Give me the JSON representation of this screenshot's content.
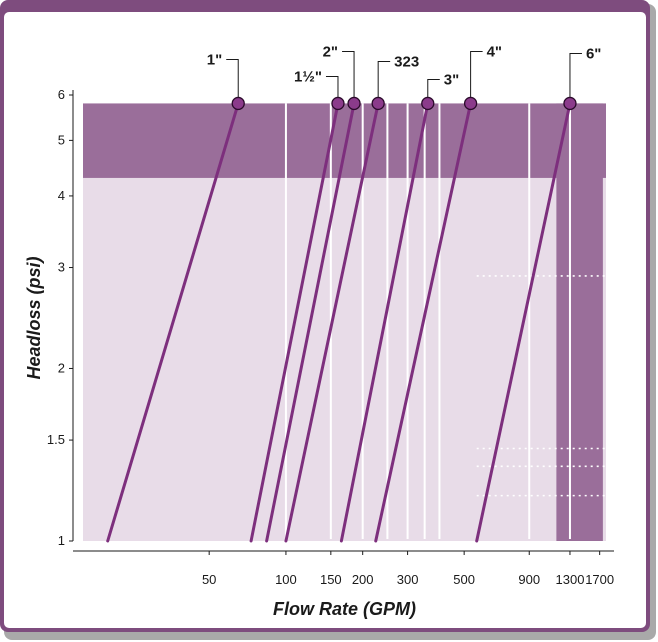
{
  "chart_data": {
    "type": "line",
    "title": "",
    "xlabel": "Flow Rate (GPM)",
    "ylabel": "Headloss (psi)",
    "x_scale": "log",
    "y_scale": "log",
    "xlim": [
      16,
      1800
    ],
    "ylim": [
      1,
      6
    ],
    "x_ticks": [
      {
        "value": 50,
        "label": "50"
      },
      {
        "value": 100,
        "label": "100"
      },
      {
        "value": 150,
        "label": "150"
      },
      {
        "value": 200,
        "label": "200"
      },
      {
        "value": 300,
        "label": "300"
      },
      {
        "value": 500,
        "label": "500"
      },
      {
        "value": 900,
        "label": "900"
      },
      {
        "value": 1300,
        "label": "1300"
      },
      {
        "value": 1700,
        "label": "1700"
      }
    ],
    "y_ticks": [
      {
        "value": 1,
        "label": "1"
      },
      {
        "value": 1.5,
        "label": "1.5"
      },
      {
        "value": 2,
        "label": "2"
      },
      {
        "value": 3,
        "label": "3"
      },
      {
        "value": 4,
        "label": "4"
      },
      {
        "value": 5,
        "label": "5"
      },
      {
        "value": 6,
        "label": "6"
      }
    ],
    "grid": {
      "vertical_x": [
        100,
        150,
        200,
        250,
        300,
        350,
        400,
        900,
        1300
      ],
      "dotted_y": [
        1.2,
        1.35,
        1.45,
        2.9
      ]
    },
    "bands": {
      "top_band_y": [
        4.3,
        5.8
      ],
      "right_band_x": [
        1150,
        1750
      ]
    },
    "series": [
      {
        "name": "1\"",
        "points": [
          [
            20,
            1
          ],
          [
            65,
            5.8
          ]
        ]
      },
      {
        "name": "1½\"",
        "points": [
          [
            73,
            1
          ],
          [
            160,
            5.8
          ]
        ]
      },
      {
        "name": "2\"",
        "points": [
          [
            84,
            1
          ],
          [
            185,
            5.8
          ]
        ]
      },
      {
        "name": "323",
        "points": [
          [
            100,
            1
          ],
          [
            230,
            5.8
          ]
        ]
      },
      {
        "name": "3\"",
        "points": [
          [
            165,
            1
          ],
          [
            360,
            5.8
          ]
        ]
      },
      {
        "name": "4\"",
        "points": [
          [
            225,
            1
          ],
          [
            530,
            5.8
          ]
        ]
      },
      {
        "name": "6\"",
        "points": [
          [
            560,
            1
          ],
          [
            1300,
            5.8
          ]
        ]
      }
    ],
    "colors": {
      "line": "#7d2f7d",
      "marker_fill": "#8b3b8b",
      "band": "#9a6e9a",
      "plot_bg": "#e8dce8",
      "frame": "#7e4c7e",
      "frame_shadow": "#a9a9a9",
      "grid": "#ffffff"
    }
  }
}
